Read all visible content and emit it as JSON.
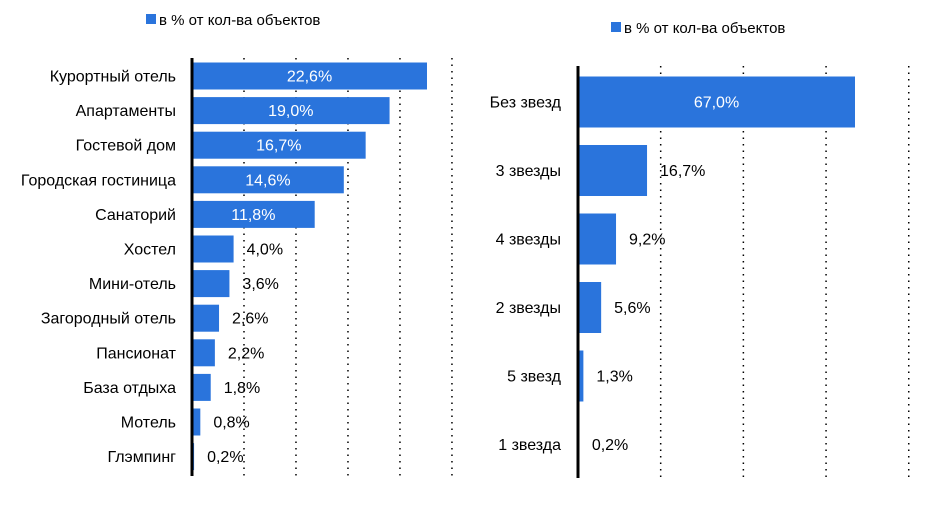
{
  "chart_data": [
    {
      "type": "bar",
      "orientation": "horizontal",
      "legend": "в % от кол-ва объектов",
      "categories": [
        "Курортный отель",
        "Апартаменты",
        "Гостевой дом",
        "Городская гостиница",
        "Санаторий",
        "Хостел",
        "Мини-отель",
        "Загородный отель",
        "Пансионат",
        "База отдыха",
        "Мотель",
        "Глэмпинг"
      ],
      "values": [
        22.6,
        19.0,
        16.7,
        14.6,
        11.8,
        4.0,
        3.6,
        2.6,
        2.2,
        1.8,
        0.8,
        0.2
      ],
      "value_labels": [
        "22,6%",
        "19,0%",
        "16,7%",
        "14,6%",
        "11,8%",
        "4,0%",
        "3,6%",
        "2,6%",
        "2,2%",
        "1,8%",
        "0,8%",
        "0,2%"
      ],
      "xlim": [
        0,
        25
      ],
      "grid": "vertical dotted",
      "color": "#2a74dc"
    },
    {
      "type": "bar",
      "orientation": "horizontal",
      "legend": "в % от кол-ва объектов",
      "categories": [
        "Без звезд",
        "3 звезды",
        "4 звезды",
        "2 звезды",
        "5 звезд",
        "1 звезда"
      ],
      "values": [
        67.0,
        16.7,
        9.2,
        5.6,
        1.3,
        0.2
      ],
      "value_labels": [
        "67,0%",
        "16,7%",
        "9,2%",
        "5,6%",
        "1,3%",
        "0,2%"
      ],
      "xlim": [
        0,
        80
      ],
      "grid": "vertical dotted",
      "color": "#2a74dc"
    }
  ]
}
